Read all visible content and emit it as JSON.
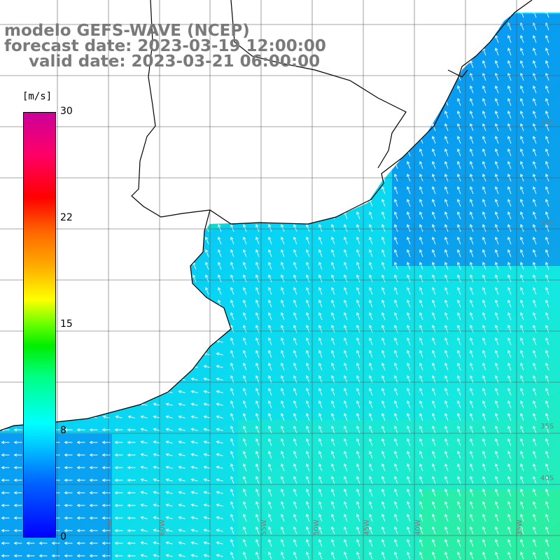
{
  "title": {
    "line1": "modelo GEFS-WAVE (NCEP)",
    "line2": "forecast date: 2023-03-19 12:00:00",
    "line3": "valid date: 2023-03-21 06:00:00"
  },
  "colorbar": {
    "unit": "[m/s]",
    "min": 0,
    "max": 30,
    "ticks": [
      {
        "label": "30",
        "value": 30
      },
      {
        "label": "22",
        "value": 22
      },
      {
        "label": "15",
        "value": 15
      },
      {
        "label": "8",
        "value": 8
      },
      {
        "label": "0",
        "value": 0
      }
    ]
  },
  "map": {
    "lat_labels": [
      "30S",
      "35S",
      "35S",
      "40S"
    ],
    "lon_labels": [
      "65W",
      "60W",
      "55W",
      "50W",
      "45W",
      "40W",
      "35W"
    ],
    "colors": {
      "land": "#ffffff",
      "grid": "#555555",
      "arrow": "#ffffff",
      "coast": "#000000"
    }
  }
}
